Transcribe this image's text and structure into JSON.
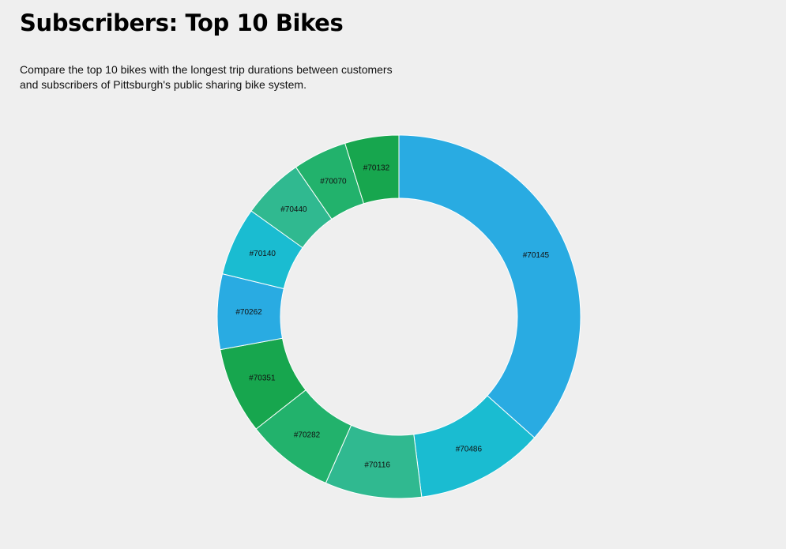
{
  "header": {
    "title": "Subscribers: Top 10 Bikes",
    "description": "Compare the top 10 bikes with the longest trip durations between customers and subscribers of Pittsburgh's public sharing bike system."
  },
  "chart_data": {
    "type": "pie",
    "variant": "donut",
    "title": "Subscribers: Top 10 Bikes",
    "categories": [
      "#70145",
      "#70486",
      "#70116",
      "#70282",
      "#70351",
      "#70262",
      "#70140",
      "#70440",
      "#70070",
      "#70132"
    ],
    "values": [
      36.6,
      11.4,
      8.6,
      7.8,
      7.7,
      6.7,
      6.1,
      5.5,
      4.8,
      4.8
    ],
    "value_unit": "percent of total",
    "colors": [
      "#29ABE2",
      "#1ABCD1",
      "#30B990",
      "#22B26C",
      "#17A64E",
      "#29ABE2",
      "#1ABCD1",
      "#30B990",
      "#22B26C",
      "#17A64E"
    ],
    "slice_border_color": "#ffffff",
    "legend": "none",
    "labels_on_slices": true
  }
}
